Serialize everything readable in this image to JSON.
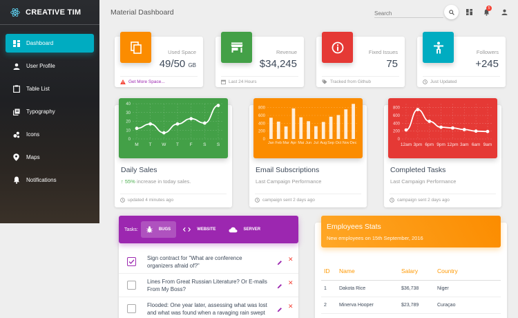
{
  "sidebar": {
    "brand": "CREATIVE TIM",
    "items": [
      {
        "label": "Dashboard",
        "icon": "dashboard-icon",
        "active": true
      },
      {
        "label": "User Profile",
        "icon": "person-icon"
      },
      {
        "label": "Table List",
        "icon": "clipboard-icon"
      },
      {
        "label": "Typography",
        "icon": "library-books-icon"
      },
      {
        "label": "Icons",
        "icon": "bubble-chart-icon"
      },
      {
        "label": "Maps",
        "icon": "location-pin-icon"
      },
      {
        "label": "Notifications",
        "icon": "bell-icon"
      }
    ]
  },
  "header": {
    "title": "Material Dashboard",
    "search_placeholder": "Search",
    "notification_count": "5"
  },
  "stats": [
    {
      "category": "Used Space",
      "value": "49/50",
      "unit": "GB",
      "footer": "Get More Space...",
      "color": "#fb8c00",
      "icon": "copy-icon",
      "footer_icon": "warning-icon"
    },
    {
      "category": "Revenue",
      "value": "$34,245",
      "unit": "",
      "footer": "Last 24 Hours",
      "color": "#43a047",
      "icon": "store-icon",
      "footer_icon": "calendar-icon"
    },
    {
      "category": "Fixed Issues",
      "value": "75",
      "unit": "",
      "footer": "Tracked from Github",
      "color": "#e53935",
      "icon": "info-icon",
      "footer_icon": "tag-icon"
    },
    {
      "category": "Followers",
      "value": "+245",
      "unit": "",
      "footer": "Just Updated",
      "color": "#00acc1",
      "icon": "accessibility-icon",
      "footer_icon": "update-icon"
    }
  ],
  "charts": {
    "daily_sales": {
      "title": "Daily Sales",
      "sub_highlight": "55%",
      "sub_rest": " increase in today sales.",
      "footer": "updated 4 minutes ago"
    },
    "email": {
      "title": "Email Subscriptions",
      "sub": "Last Campaign Performance",
      "footer": "campaign sent 2 days ago"
    },
    "completed": {
      "title": "Completed Tasks",
      "sub": "Last Campaign Performance",
      "footer": "campaign sent 2 days ago"
    }
  },
  "chart_data": [
    {
      "type": "line",
      "categories": [
        "M",
        "T",
        "W",
        "T",
        "F",
        "S",
        "S"
      ],
      "values": [
        12,
        17,
        7,
        17,
        23,
        18,
        38
      ],
      "yticks": [
        0,
        10,
        20,
        30,
        40
      ],
      "ylim": [
        0,
        40
      ],
      "color": "#43a047"
    },
    {
      "type": "bar",
      "categories": [
        "Jan",
        "Feb",
        "Mar",
        "Apr",
        "Mai",
        "Jun",
        "Jul",
        "Aug",
        "Sep",
        "Oct",
        "Nov",
        "Dec"
      ],
      "values": [
        542,
        443,
        320,
        780,
        553,
        453,
        326,
        434,
        568,
        610,
        756,
        895
      ],
      "yticks": [
        0,
        200,
        400,
        600,
        800
      ],
      "ylim": [
        0,
        900
      ],
      "color": "#fb8c00"
    },
    {
      "type": "line",
      "categories": [
        "12am",
        "3pm",
        "6pm",
        "9pm",
        "12pm",
        "3am",
        "6am",
        "9am"
      ],
      "values": [
        230,
        750,
        450,
        300,
        280,
        240,
        200,
        190
      ],
      "yticks": [
        0,
        200,
        400,
        600,
        800
      ],
      "ylim": [
        0,
        900
      ],
      "color": "#e53935"
    }
  ],
  "tasks": {
    "label": "Tasks:",
    "tabs": [
      {
        "label": "BUGS",
        "icon": "bug-icon",
        "active": true
      },
      {
        "label": "WEBSITE",
        "icon": "code-icon"
      },
      {
        "label": "SERVER",
        "icon": "cloud-icon"
      }
    ],
    "rows": [
      {
        "text": "Sign contract for \"What are conference organizers afraid of?\"",
        "checked": true
      },
      {
        "text": "Lines From Great Russian Literature? Or E-mails From My Boss?",
        "checked": false
      },
      {
        "text": "Flooded: One year later, assessing what was lost and what was found when a ravaging rain swept",
        "checked": false
      }
    ]
  },
  "employees": {
    "title": "Employees Stats",
    "subtitle": "New employees on 15th September, 2016",
    "columns": [
      "ID",
      "Name",
      "Salary",
      "Country"
    ],
    "rows": [
      [
        "1",
        "Dakota Rice",
        "$36,738",
        "Niger"
      ],
      [
        "2",
        "Minerva Hooper",
        "$23,789",
        "Curaçao"
      ]
    ]
  }
}
